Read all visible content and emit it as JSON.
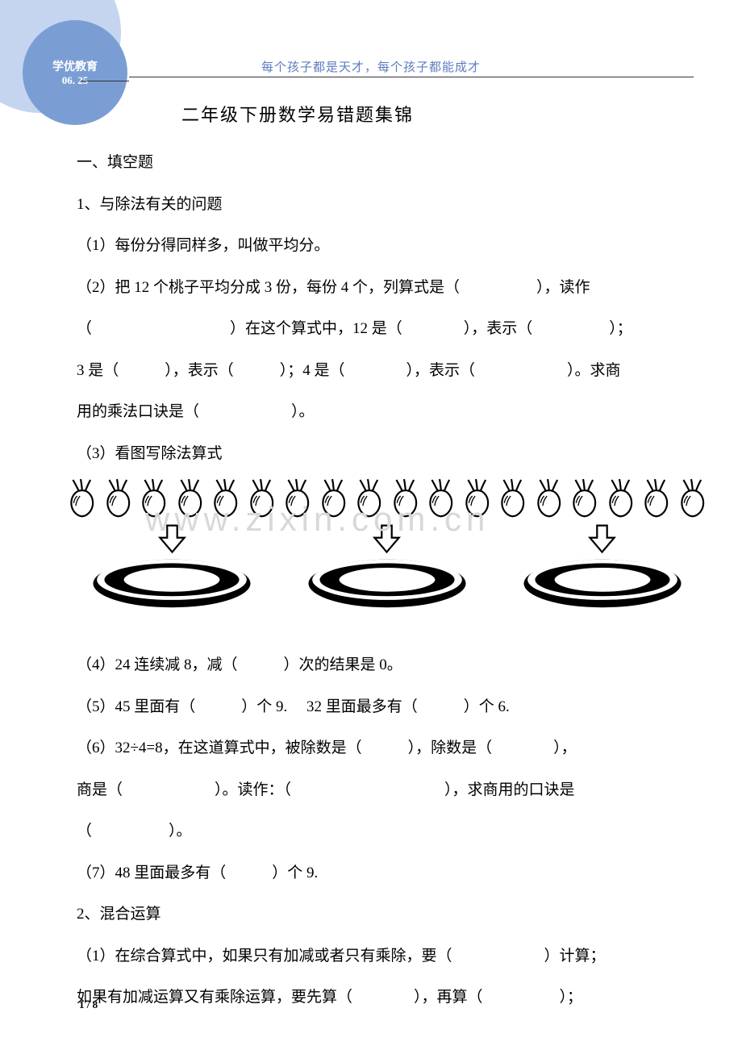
{
  "corner": {
    "title": "学优教育",
    "date": "06. 25"
  },
  "header": {
    "slogan": "每个孩子都是天才，每个孩子都能成才"
  },
  "doc": {
    "title": "二年级下册数学易错题集锦",
    "section1": "一、填空题",
    "q1_heading": "1、与除法有关的问题",
    "q1_1": "（1）每份分得同样多，叫做平均分。",
    "q1_2": "（2）把 12 个桃子平均分成 3 份，每份 4 个，列算式是（　　　　　），读作",
    "q1_2b": "（　　　　　　　　　）在这个算式中，12 是（　　　　），表示（　　　　　）；",
    "q1_2c": "3 是（　　　），表示（　　　）；4 是（　　　　），表示（　　　　　　）。求商",
    "q1_2d": "用的乘法口诀是（　　　　　　）。",
    "q1_3": "（3）看图写除法算式",
    "q1_4": "（4）24 连续减 8，减（　　　）次的结果是 0。",
    "q1_5": "（5）45 里面有（　　　）个 9.　 32 里面最多有（　　　）个 6.",
    "q1_6": "（6）32÷4=8，在这道算式中，被除数是（　　　），除数是（　　　　），",
    "q1_6b": "商是（　　　　　　）。读作：（　　　　　　　　　　），求商用的口诀是",
    "q1_6c": "（　　　　　）。",
    "q1_7": "（7）48 里面最多有（　　　）个 9.",
    "q2_heading": "2、混合运算",
    "q2_1": "（1）在综合算式中，如果只有加减或者只有乘除，要（　　　　　　）计算；",
    "q2_1b": "如果有加减运算又有乘除运算，要先算（　　　　），再算（　　　　　）；"
  },
  "diagram": {
    "turnip_count": 18,
    "plate_count": 3,
    "stroke_color": "#000000",
    "fill_color": "#ffffff"
  },
  "watermark": "www.zixin.com.cn",
  "page": "1 / 8",
  "colors": {
    "arc_outer": "#c5d5ef",
    "arc_inner": "#7a9ed4",
    "slogan": "#5b7cbf",
    "text": "#000000",
    "watermark": "#d8d8d8"
  }
}
